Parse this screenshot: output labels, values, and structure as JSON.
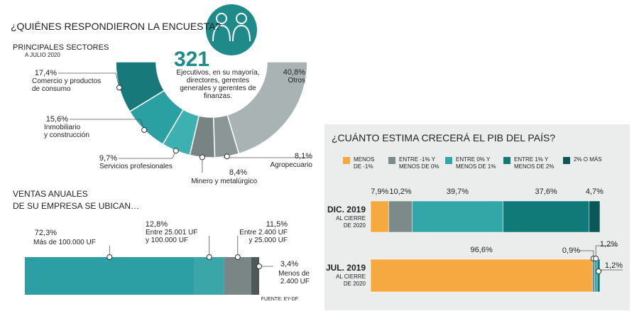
{
  "chart_data": [
    {
      "type": "donut",
      "title": "¿QUIÉNES RESPONDIERON LA ENCUESTA?",
      "subtitle": "PRINCIPALES SECTORES",
      "note": "A JULIO 2020",
      "center_value": 321,
      "center_text": "Ejecutivos, en su mayoría,\ndirectores, gerentes\ngenerales y gerentes de\nfinanzas.",
      "categories": [
        "Comercio y productos\nde consumo",
        "Inmobiliario\ny construcción",
        "Servicios profesionales",
        "Minero y metalúrgico",
        "Agropecuario",
        "Otros"
      ],
      "values": [
        17.4,
        15.6,
        9.7,
        8.4,
        8.1,
        40.8
      ],
      "value_labels": [
        "17,4%",
        "15,6%",
        "9,7%",
        "8,4%",
        "8,1%",
        "40,8%"
      ],
      "colors": [
        "#17797a",
        "#2aa0a3",
        "#3db0b1",
        "#788383",
        "#8b9696",
        "#a9b3b3"
      ]
    },
    {
      "type": "stacked-hbar",
      "title": "VENTAS ANUALES\nDE SU EMPRESA SE UBICAN…",
      "categories": [
        "Más de 100.000 UF",
        "Entre 25.001 UF\ny 100.000 UF",
        "Entre 2.400 UF\ny 25.000 UF",
        "Menos de\n2.400 UF"
      ],
      "values": [
        72.3,
        12.8,
        11.5,
        3.4
      ],
      "value_labels": [
        "72,3%",
        "12,8%",
        "11,5%",
        "3,4%"
      ],
      "colors": [
        "#2b9fa3",
        "#3aa6a8",
        "#7a8585",
        "#4e5858"
      ],
      "source": "FUENTE: EY-DF"
    },
    {
      "type": "stacked-hbar-series",
      "title": "¿CUÁNTO ESTIMA CRECERÁ EL PIB DEL PAÍS?",
      "categories": [
        "DIC. 2019",
        "JUL. 2019"
      ],
      "category_notes": [
        "AL CIERRE\nDE 2020",
        "AL CIERRE\nDE 2020"
      ],
      "series": [
        {
          "name": "MENOS\nDE -1%",
          "color": "#f6a941",
          "values": [
            7.9,
            96.6
          ],
          "value_labels": [
            "7,9%",
            "96,6%"
          ]
        },
        {
          "name": "ENTRE -1% Y\nMENOS DE 0%",
          "color": "#7d8a8a",
          "values": [
            10.2,
            0.9
          ],
          "value_labels": [
            "10,2%",
            "0,9%"
          ]
        },
        {
          "name": "ENTRE 0% Y\nMENOS DE 1%",
          "color": "#33a6a8",
          "values": [
            39.7,
            1.2
          ],
          "value_labels": [
            "39,7%",
            "1,2%"
          ]
        },
        {
          "name": "ENTRE 1% Y\nMENOS DE 2%",
          "color": "#0f7a78",
          "values": [
            37.6,
            1.2
          ],
          "value_labels": [
            "37,6%",
            "1,2%"
          ]
        },
        {
          "name": "2% O MÁS",
          "color": "#0b5656",
          "values": [
            4.7,
            null
          ],
          "value_labels": [
            "4,7%",
            null
          ]
        }
      ]
    }
  ]
}
